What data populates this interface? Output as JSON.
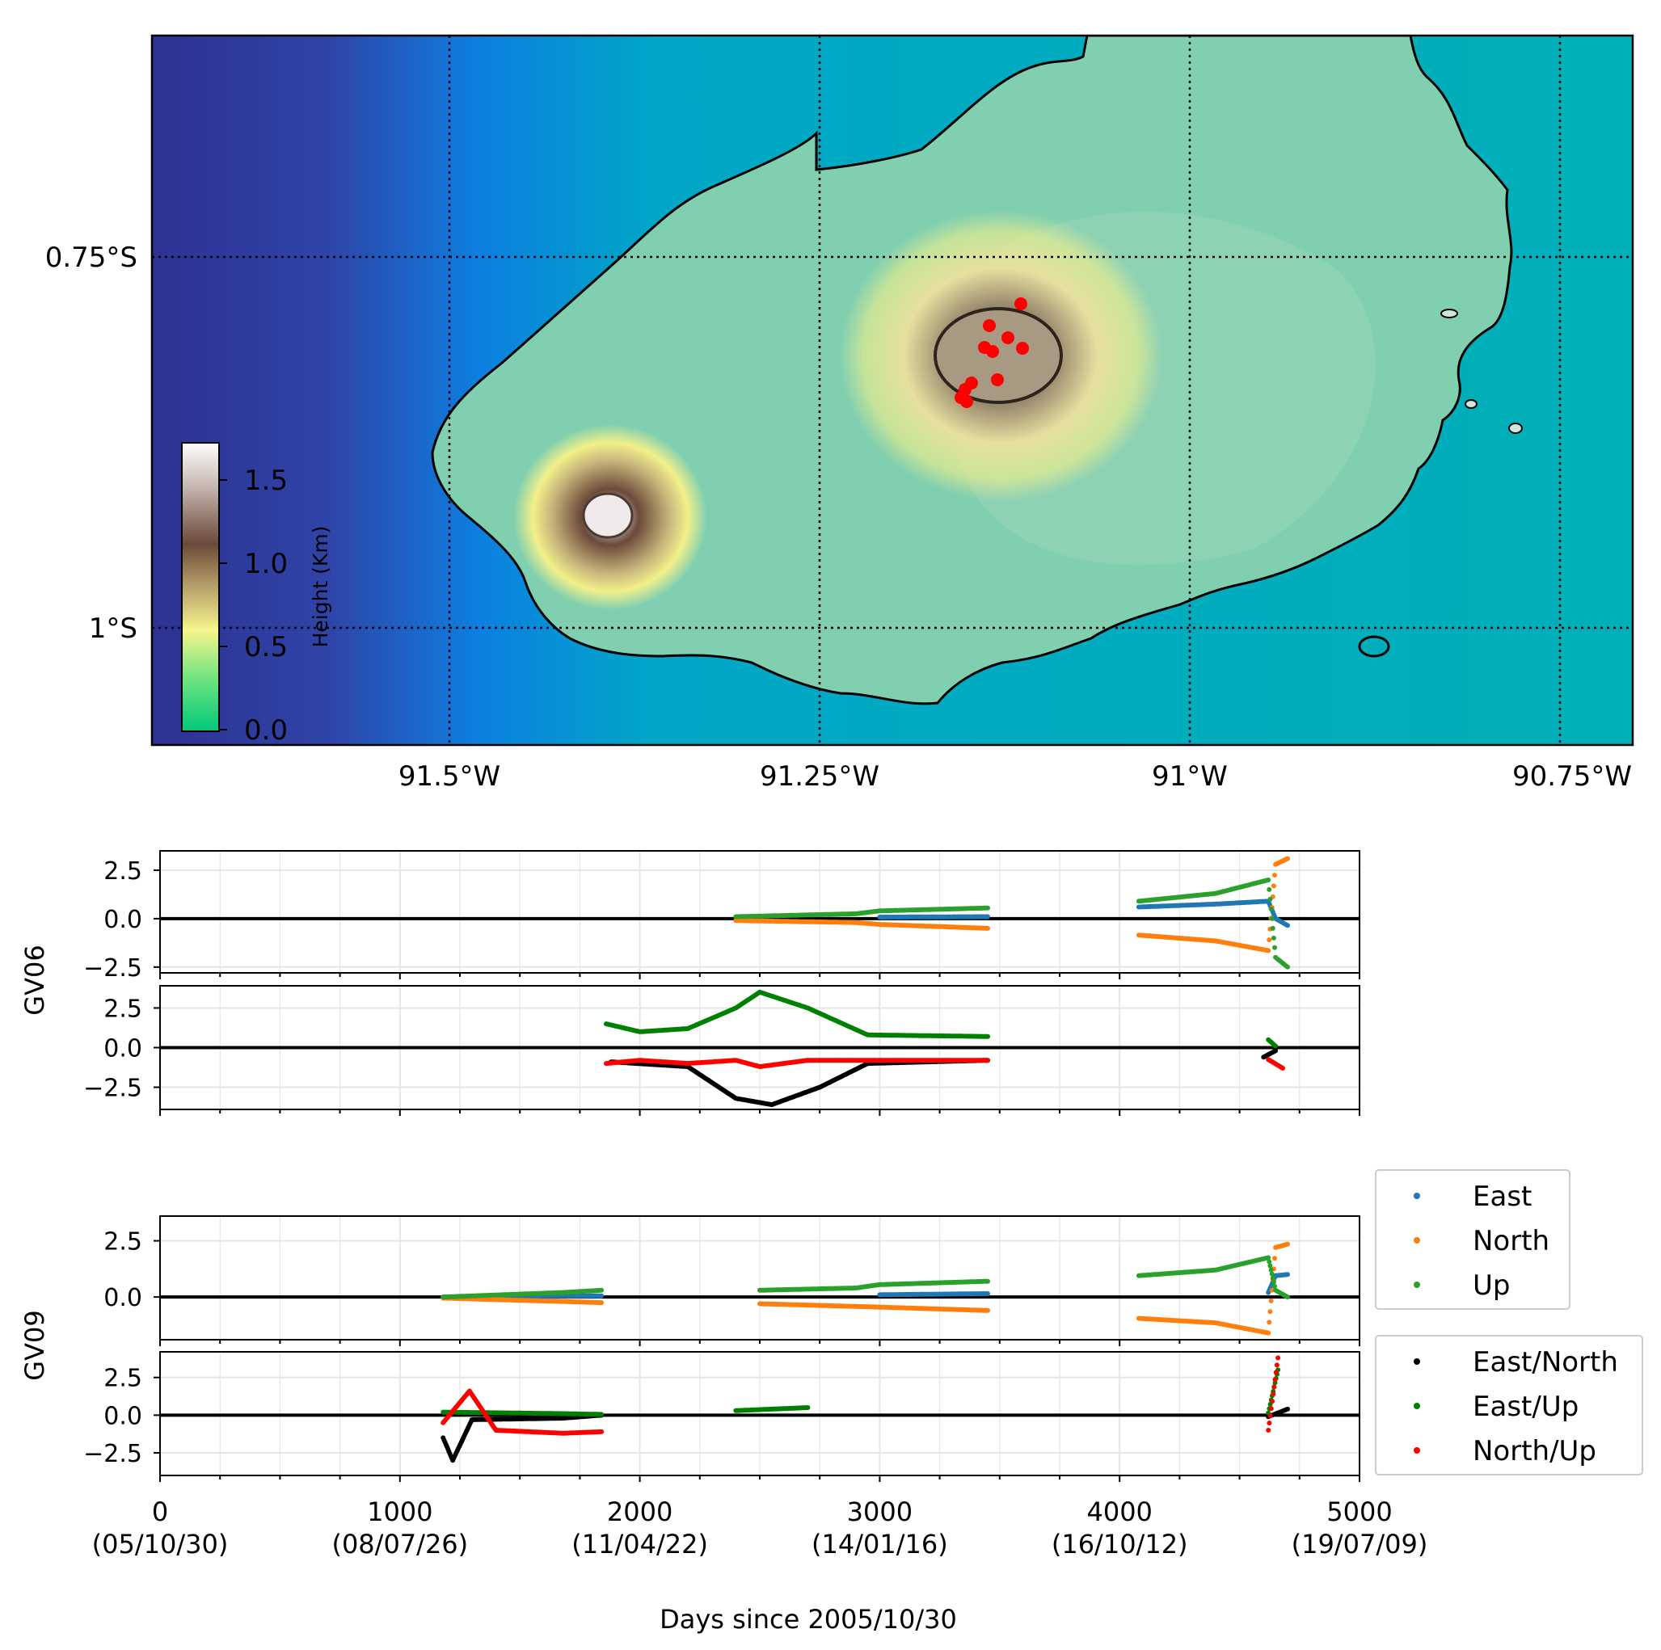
{
  "chart_data": [
    {
      "type": "map",
      "xticks": [
        "91.5°W",
        "91.25°W",
        "91°W",
        "90.75°W"
      ],
      "yticks": [
        "0.75°S",
        "1°S"
      ],
      "colorbar": {
        "label": "Height (Km)",
        "ticks": [
          "0.0",
          "0.5",
          "1.0",
          "1.5"
        ],
        "range": [
          0,
          1.65
        ]
      },
      "station_markers": {
        "color": "#ff0000",
        "count": 11
      },
      "colors": {
        "sea_deep": "#2e3192",
        "sea_shallow": "#00a3b4",
        "low": "#1dd77e",
        "mid": "#f3f08a",
        "high": "#6b4a3a",
        "peak": "#ffffff"
      }
    },
    {
      "type": "scatter",
      "name": "GV06",
      "ylabel": "GV06",
      "top_panel": {
        "yticks": [
          "2.5",
          "0.0",
          "−2.5"
        ],
        "ylim": [
          -2.8,
          3.5
        ],
        "series": [
          {
            "name": "East",
            "color": "#1f77b4",
            "points": [
              [
                1840,
                0.0
              ],
              [
                2400,
                0.02
              ],
              [
                3000,
                0.08
              ],
              [
                3450,
                0.1
              ],
              [
                4080,
                0.6
              ],
              [
                4400,
                0.75
              ],
              [
                4620,
                0.9
              ],
              [
                4650,
                0.0
              ],
              [
                4700,
                -0.35
              ]
            ]
          },
          {
            "name": "North",
            "color": "#ff7f0e",
            "points": [
              [
                1840,
                -0.05
              ],
              [
                2400,
                -0.1
              ],
              [
                2900,
                -0.2
              ],
              [
                3000,
                -0.3
              ],
              [
                3450,
                -0.5
              ],
              [
                4080,
                -0.85
              ],
              [
                4400,
                -1.15
              ],
              [
                4620,
                -1.65
              ],
              [
                4650,
                2.8
              ],
              [
                4700,
                3.1
              ]
            ]
          },
          {
            "name": "Up",
            "color": "#2ca02c",
            "points": [
              [
                1840,
                0.05
              ],
              [
                2400,
                0.1
              ],
              [
                2900,
                0.25
              ],
              [
                3000,
                0.4
              ],
              [
                3450,
                0.55
              ],
              [
                4080,
                0.9
              ],
              [
                4400,
                1.3
              ],
              [
                4620,
                2.0
              ],
              [
                4650,
                -2.0
              ],
              [
                4700,
                -2.5
              ]
            ]
          }
        ]
      },
      "bottom_panel": {
        "yticks": [
          "2.5",
          "0.0",
          "−2.5"
        ],
        "ylim": [
          -3.9,
          3.9
        ],
        "series": [
          {
            "name": "East/North",
            "color": "#000000",
            "points": [
              [
                1880,
                -0.9
              ],
              [
                2200,
                -1.2
              ],
              [
                2400,
                -3.2
              ],
              [
                2550,
                -3.6
              ],
              [
                2750,
                -2.5
              ],
              [
                2950,
                -1.0
              ],
              [
                3450,
                -0.8
              ],
              [
                4080,
                -0.7
              ],
              [
                4600,
                -0.6
              ],
              [
                4650,
                -0.2
              ]
            ]
          },
          {
            "name": "East/Up",
            "color": "#008000",
            "points": [
              [
                1860,
                1.5
              ],
              [
                2000,
                1.0
              ],
              [
                2200,
                1.2
              ],
              [
                2400,
                2.5
              ],
              [
                2500,
                3.5
              ],
              [
                2700,
                2.5
              ],
              [
                2950,
                0.8
              ],
              [
                3450,
                0.7
              ],
              [
                4080,
                0.65
              ],
              [
                4620,
                0.5
              ],
              [
                4650,
                0.1
              ]
            ]
          },
          {
            "name": "North/Up",
            "color": "#ff0000",
            "points": [
              [
                1860,
                -1.0
              ],
              [
                2000,
                -0.8
              ],
              [
                2200,
                -1.0
              ],
              [
                2400,
                -0.8
              ],
              [
                2500,
                -1.2
              ],
              [
                2700,
                -0.8
              ],
              [
                2950,
                -0.8
              ],
              [
                3450,
                -0.8
              ],
              [
                4080,
                -0.8
              ],
              [
                4620,
                -0.75
              ],
              [
                4680,
                -1.3
              ]
            ]
          }
        ]
      }
    },
    {
      "type": "scatter",
      "name": "GV09",
      "ylabel": "GV09",
      "top_panel": {
        "yticks": [
          "2.5",
          "0.0"
        ],
        "ylim": [
          -1.9,
          3.6
        ],
        "series": [
          {
            "name": "East",
            "color": "#1f77b4",
            "points": [
              [
                1180,
                0.0
              ],
              [
                1680,
                0.05
              ],
              [
                1840,
                0.05
              ],
              [
                3000,
                0.1
              ],
              [
                3450,
                0.15
              ],
              [
                4080,
                0.25
              ],
              [
                4620,
                0.2
              ],
              [
                4650,
                0.95
              ],
              [
                4700,
                1.0
              ]
            ]
          },
          {
            "name": "North",
            "color": "#ff7f0e",
            "points": [
              [
                1180,
                -0.05
              ],
              [
                1680,
                -0.2
              ],
              [
                1840,
                -0.25
              ],
              [
                2500,
                -0.3
              ],
              [
                3000,
                -0.45
              ],
              [
                3450,
                -0.6
              ],
              [
                4080,
                -0.95
              ],
              [
                4400,
                -1.15
              ],
              [
                4620,
                -1.6
              ],
              [
                4650,
                2.2
              ],
              [
                4700,
                2.35
              ]
            ]
          },
          {
            "name": "Up",
            "color": "#2ca02c",
            "points": [
              [
                1180,
                0.0
              ],
              [
                1680,
                0.2
              ],
              [
                1840,
                0.3
              ],
              [
                2500,
                0.3
              ],
              [
                2900,
                0.4
              ],
              [
                3000,
                0.55
              ],
              [
                3450,
                0.7
              ],
              [
                4080,
                0.95
              ],
              [
                4400,
                1.2
              ],
              [
                4620,
                1.75
              ],
              [
                4650,
                0.3
              ],
              [
                4700,
                0.0
              ]
            ]
          }
        ]
      },
      "bottom_panel": {
        "yticks": [
          "2.5",
          "0.0",
          "−2.5"
        ],
        "ylim": [
          -4.0,
          4.2
        ],
        "series": [
          {
            "name": "East/North",
            "color": "#000000",
            "points": [
              [
                1180,
                -1.5
              ],
              [
                1220,
                -3.0
              ],
              [
                1300,
                -0.3
              ],
              [
                1680,
                -0.2
              ],
              [
                1840,
                0.0
              ],
              [
                2500,
                -0.3
              ],
              [
                3450,
                -0.2
              ],
              [
                4080,
                -0.1
              ],
              [
                4620,
                -0.1
              ],
              [
                4700,
                0.4
              ]
            ]
          },
          {
            "name": "East/Up",
            "color": "#008000",
            "points": [
              [
                1180,
                0.2
              ],
              [
                1680,
                0.1
              ],
              [
                1840,
                0.05
              ],
              [
                2400,
                0.3
              ],
              [
                2700,
                0.5
              ],
              [
                3450,
                0.2
              ],
              [
                4080,
                0.2
              ],
              [
                4620,
                0.15
              ],
              [
                4660,
                3.0
              ]
            ]
          },
          {
            "name": "North/Up",
            "color": "#ff0000",
            "points": [
              [
                1180,
                -0.5
              ],
              [
                1290,
                1.6
              ],
              [
                1400,
                -1.0
              ],
              [
                1680,
                -1.2
              ],
              [
                1840,
                -1.1
              ],
              [
                2500,
                -1.1
              ],
              [
                3450,
                -1.1
              ],
              [
                4080,
                -1.1
              ],
              [
                4620,
                -1.0
              ],
              [
                4660,
                3.8
              ]
            ]
          }
        ]
      },
      "xlabel": "Days since 2005/10/30",
      "xlim": [
        0,
        5000
      ],
      "xticks": [
        {
          "value": 0,
          "label": "0",
          "date": "(05/10/30)"
        },
        {
          "value": 1000,
          "label": "1000",
          "date": "(08/07/26)"
        },
        {
          "value": 2000,
          "label": "2000",
          "date": "(11/04/22)"
        },
        {
          "value": 3000,
          "label": "3000",
          "date": "(14/01/16)"
        },
        {
          "value": 4000,
          "label": "4000",
          "date": "(16/10/12)"
        },
        {
          "value": 5000,
          "label": "5000",
          "date": "(19/07/09)"
        }
      ]
    }
  ],
  "legend_components": {
    "entries": [
      "East",
      "North",
      "Up"
    ],
    "colors": [
      "#1f77b4",
      "#ff7f0e",
      "#2ca02c"
    ]
  },
  "legend_ratios": {
    "entries": [
      "East/North",
      "East/Up",
      "North/Up"
    ],
    "colors": [
      "#000000",
      "#008000",
      "#ff0000"
    ]
  }
}
